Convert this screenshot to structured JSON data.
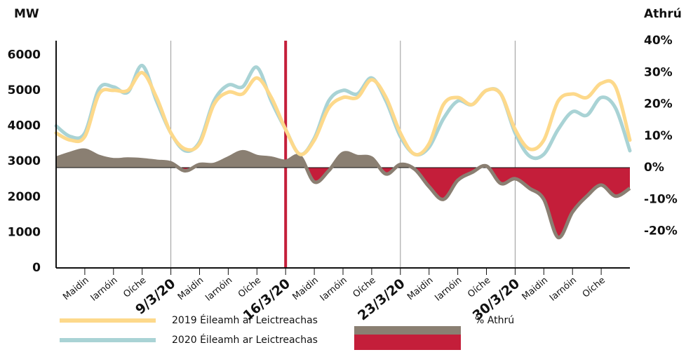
{
  "chart_data": {
    "type": "line",
    "y_label": "MW",
    "y2_label": "Athrú",
    "xlim": [
      0,
      20
    ],
    "xticks": [
      {
        "value": 1,
        "label": "Maidin"
      },
      {
        "value": 2,
        "label": "Iarnóin"
      },
      {
        "value": 3,
        "label": "Oíche"
      },
      {
        "value": 4,
        "label": "9/3/20"
      },
      {
        "value": 5,
        "label": "Maidin"
      },
      {
        "value": 6,
        "label": "Iarnóin"
      },
      {
        "value": 7,
        "label": "Oíche"
      },
      {
        "value": 8,
        "label": "16/3/20"
      },
      {
        "value": 9,
        "label": "Maidin"
      },
      {
        "value": 10,
        "label": "Iarnóin"
      },
      {
        "value": 11,
        "label": "Oíche"
      },
      {
        "value": 12,
        "label": "23/3/20"
      },
      {
        "value": 13,
        "label": "Maidin"
      },
      {
        "value": 14,
        "label": "Iarnóin"
      },
      {
        "value": 15,
        "label": "Oíche"
      },
      {
        "value": 16,
        "label": "30/3/20"
      },
      {
        "value": 17,
        "label": "Maidin"
      },
      {
        "value": 18,
        "label": "Iarnóin"
      },
      {
        "value": 19,
        "label": "Oíche"
      }
    ],
    "highlight_tick": 7,
    "highlight_color": "#c41e3a",
    "ylim": [
      0,
      6400
    ],
    "yticks": [
      0,
      1000,
      2000,
      3000,
      4000,
      5000,
      6000
    ],
    "y2lim": [
      -31.6,
      40
    ],
    "y2ticks": [
      {
        "value": 40,
        "label": "40%"
      },
      {
        "value": 30,
        "label": "30%"
      },
      {
        "value": 20,
        "label": "20%"
      },
      {
        "value": 10,
        "label": "10%"
      },
      {
        "value": 0,
        "label": "0%"
      },
      {
        "value": -10,
        "label": "-10%"
      },
      {
        "value": -20,
        "label": "-20%"
      }
    ],
    "x": [
      0,
      0.5,
      1,
      1.5,
      2,
      2.5,
      3,
      3.5,
      4,
      4.5,
      5,
      5.5,
      6,
      6.5,
      7,
      7.5,
      8,
      8.5,
      9,
      9.5,
      10,
      10.5,
      11,
      11.5,
      12,
      12.5,
      13,
      13.5,
      14,
      14.5,
      15,
      15.5,
      16,
      16.5,
      17,
      17.5,
      18,
      18.5,
      19,
      19.5,
      20
    ],
    "series": [
      {
        "name": "2019 Éileamh ar Leictreachas",
        "color": "#fdd98b",
        "values": [
          3800,
          3600,
          3700,
          4900,
          5000,
          5000,
          5500,
          4800,
          3800,
          3350,
          3500,
          4600,
          4950,
          4900,
          5350,
          4800,
          3900,
          3200,
          3600,
          4500,
          4800,
          4800,
          5300,
          4800,
          3800,
          3200,
          3500,
          4600,
          4800,
          4600,
          5000,
          4900,
          3900,
          3350,
          3600,
          4700,
          4900,
          4800,
          5200,
          5100,
          3600
        ]
      },
      {
        "name": "2020 Éileamh ar Leictreachas",
        "color": "#a9d3d5",
        "values": [
          4000,
          3700,
          3800,
          5050,
          5100,
          4950,
          5700,
          4700,
          3800,
          3300,
          3550,
          4700,
          5150,
          5100,
          5650,
          4700,
          3900,
          3200,
          3650,
          4700,
          5000,
          4900,
          5350,
          4700,
          3700,
          3200,
          3400,
          4200,
          4700,
          4600,
          5000,
          4900,
          3800,
          3150,
          3200,
          3900,
          4400,
          4300,
          4800,
          4500,
          3300
        ]
      },
      {
        "name": "% Athrú",
        "axis": "y2",
        "color": "#8a7f72",
        "negative_color": "#c41e3a",
        "values": [
          3,
          4.5,
          5.5,
          3.5,
          2.5,
          2.7,
          2.5,
          2,
          1.5,
          -1,
          1,
          1,
          3,
          5,
          3.5,
          3,
          2,
          3.5,
          -4.5,
          -1,
          4.5,
          3.5,
          3,
          -2,
          1,
          -0.5,
          -6,
          -10,
          -4,
          -1.5,
          0.5,
          -5,
          -3.5,
          -6.5,
          -10,
          -22,
          -14,
          -9,
          -5.5,
          -9,
          -6.5
        ]
      }
    ]
  }
}
